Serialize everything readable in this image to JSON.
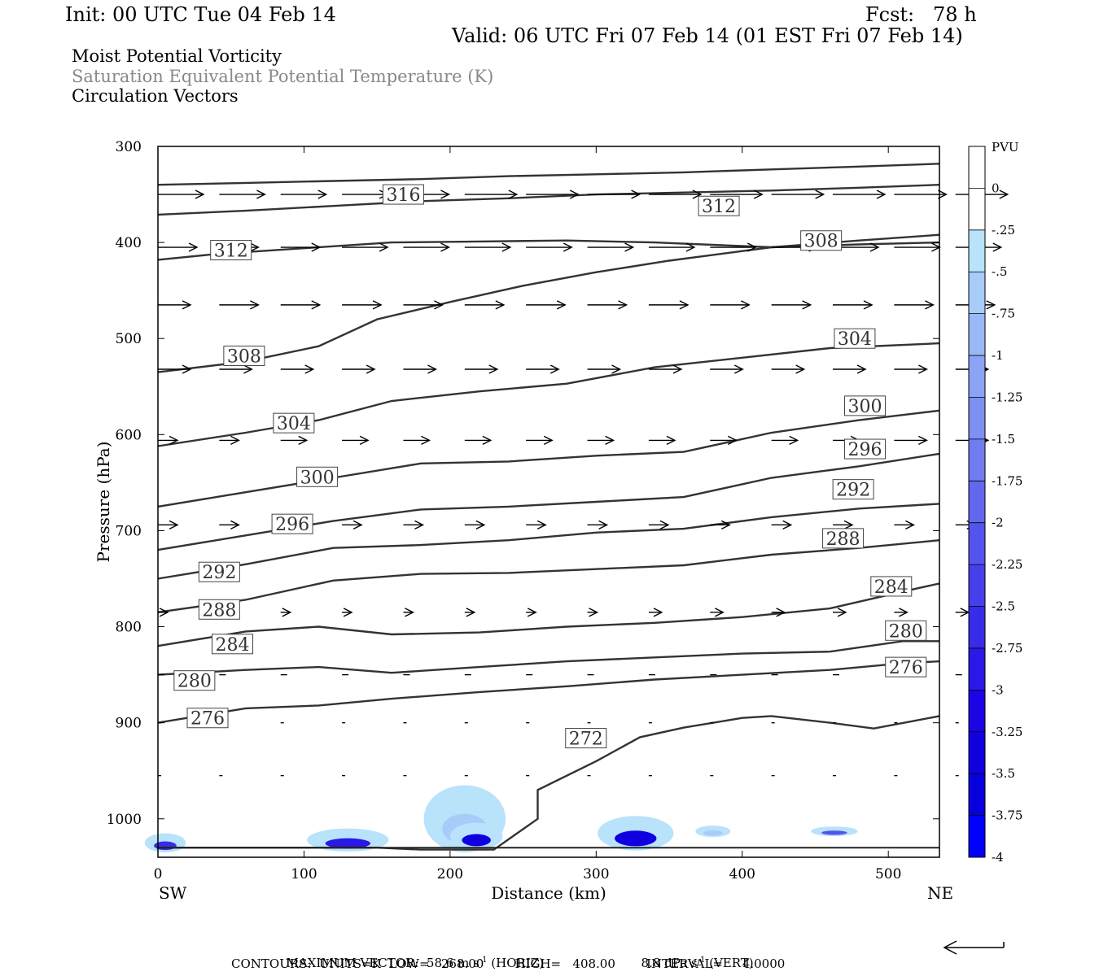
{
  "header": {
    "init": "Init: 00 UTC Tue 04 Feb 14",
    "fcst": "Fcst:   78 h",
    "valid": "Valid: 06 UTC Fri 07 Feb 14 (01 EST Fri 07 Feb 14)"
  },
  "fields": {
    "field1": "Moist Potential Vorticity",
    "field2": "Saturation Equivalent Potential Temperature (K)",
    "field3": "Circulation Vectors"
  },
  "footer": {
    "max_vector": "MAXIMUM VECTOR:  58.6 m s",
    "max_vector_exp1": "-1",
    "horiz": " (HORIZ)",
    "vert_value": "8.8 dPa s",
    "max_vector_exp2": "-1",
    "vert": " (VERT)",
    "contours": "CONTOURS:  UNITS=K  LOW=   268.00        HIGH=   408.00        INTERVAL=     4.0000"
  },
  "colors": {
    "pv_scale": [
      "#ffffff",
      "#ffffff",
      "#b9e2fb",
      "#a8ccf8",
      "#9ab8f6",
      "#8ca4f4",
      "#7e90f2",
      "#707cf0",
      "#6268ee",
      "#5454ec",
      "#4640ea",
      "#382ce8",
      "#2a18e6",
      "#1c04e4",
      "#1000e0",
      "#0800dc",
      "#0000ff"
    ],
    "contour": "#333333",
    "vector": "#000000"
  },
  "chart_data": {
    "type": "cross-section",
    "xlabel": "Distance (km)",
    "ylabel": "Pressure (hPa)",
    "xlim": [
      0,
      535
    ],
    "ylim": [
      1040,
      300
    ],
    "x_ticks": [
      0,
      100,
      200,
      300,
      400,
      500
    ],
    "y_ticks": [
      300,
      400,
      500,
      600,
      700,
      800,
      900,
      1000
    ],
    "x_end_labels": {
      "left": "SW",
      "right": "NE"
    },
    "colorbar": {
      "units": "PVU",
      "labels": [
        "0",
        "-.25",
        "-.5",
        "-.75",
        "-1",
        "-1.25",
        "-1.5",
        "-1.75",
        "-2",
        "-2.25",
        "-2.5",
        "-2.75",
        "-3",
        "-3.25",
        "-3.5",
        "-3.75",
        "-4"
      ]
    },
    "theta_es_contours": [
      {
        "value": 316,
        "points": [
          [
            0,
            340
          ],
          [
            60,
            338
          ],
          [
            120,
            336
          ],
          [
            180,
            334
          ],
          [
            240,
            331
          ],
          [
            300,
            329
          ],
          [
            360,
            327
          ],
          [
            420,
            324
          ],
          [
            480,
            321
          ],
          [
            535,
            318
          ]
        ],
        "label_at": [
          168,
          350
        ]
      },
      {
        "value": 312,
        "points": [
          [
            0,
            371
          ],
          [
            60,
            367
          ],
          [
            120,
            362
          ],
          [
            180,
            357
          ],
          [
            240,
            354
          ],
          [
            300,
            350
          ],
          [
            360,
            348
          ],
          [
            420,
            346
          ],
          [
            480,
            343
          ],
          [
            535,
            340
          ]
        ],
        "label_at": [
          384,
          362
        ]
      },
      {
        "value": 312,
        "points": [
          [
            0,
            418
          ],
          [
            40,
            412
          ],
          [
            100,
            406
          ],
          [
            160,
            400
          ],
          [
            220,
            399
          ],
          [
            280,
            398
          ],
          [
            340,
            400
          ],
          [
            420,
            405
          ],
          [
            480,
            402
          ],
          [
            535,
            400
          ]
        ],
        "label_at": [
          50,
          408
        ]
      },
      {
        "value": 308,
        "points": [
          [
            0,
            535
          ],
          [
            60,
            524
          ],
          [
            110,
            508
          ],
          [
            150,
            480
          ],
          [
            200,
            462
          ],
          [
            250,
            445
          ],
          [
            300,
            431
          ],
          [
            350,
            419
          ],
          [
            420,
            405
          ],
          [
            480,
            398
          ],
          [
            535,
            392
          ]
        ],
        "label_at": [
          454,
          398
        ]
      },
      {
        "value": 308,
        "points": [],
        "label_at": [
          59,
          518
        ]
      },
      {
        "value": 304,
        "points": [
          [
            0,
            612
          ],
          [
            60,
            598
          ],
          [
            110,
            585
          ],
          [
            160,
            565
          ],
          [
            220,
            555
          ],
          [
            280,
            547
          ],
          [
            340,
            530
          ],
          [
            400,
            520
          ],
          [
            460,
            510
          ],
          [
            535,
            505
          ]
        ],
        "label_at": [
          477,
          500
        ]
      },
      {
        "value": 304,
        "points": [],
        "label_at": [
          93,
          588
        ]
      },
      {
        "value": 300,
        "points": [
          [
            0,
            675
          ],
          [
            60,
            660
          ],
          [
            120,
            645
          ],
          [
            180,
            630
          ],
          [
            240,
            628
          ],
          [
            300,
            622
          ],
          [
            360,
            618
          ],
          [
            420,
            598
          ],
          [
            480,
            585
          ],
          [
            535,
            575
          ]
        ],
        "label_at": [
          484,
          570
        ]
      },
      {
        "value": 300,
        "points": [],
        "label_at": [
          109,
          644
        ]
      },
      {
        "value": 296,
        "points": [
          [
            0,
            720
          ],
          [
            60,
            705
          ],
          [
            120,
            690
          ],
          [
            180,
            678
          ],
          [
            240,
            675
          ],
          [
            300,
            670
          ],
          [
            360,
            665
          ],
          [
            420,
            645
          ],
          [
            480,
            633
          ],
          [
            535,
            620
          ]
        ],
        "label_at": [
          484,
          615
        ]
      },
      {
        "value": 292,
        "points": [
          [
            0,
            750
          ],
          [
            60,
            735
          ],
          [
            120,
            718
          ],
          [
            180,
            715
          ],
          [
            240,
            710
          ],
          [
            300,
            702
          ],
          [
            360,
            698
          ],
          [
            420,
            686
          ],
          [
            480,
            677
          ],
          [
            535,
            672
          ]
        ],
        "label_at": [
          476,
          657
        ]
      },
      {
        "value": 296,
        "points": [],
        "label_at": [
          92,
          693
        ]
      },
      {
        "value": 288,
        "points": [
          [
            0,
            785
          ],
          [
            60,
            772
          ],
          [
            120,
            752
          ],
          [
            180,
            745
          ],
          [
            240,
            744
          ],
          [
            300,
            740
          ],
          [
            360,
            736
          ],
          [
            420,
            725
          ],
          [
            480,
            718
          ],
          [
            535,
            710
          ]
        ],
        "label_at": [
          469,
          708
        ]
      },
      {
        "value": 292,
        "points": [],
        "label_at": [
          42,
          743
        ]
      },
      {
        "value": 284,
        "points": [
          [
            0,
            820
          ],
          [
            60,
            805
          ],
          [
            110,
            800
          ],
          [
            160,
            808
          ],
          [
            220,
            806
          ],
          [
            280,
            800
          ],
          [
            340,
            796
          ],
          [
            400,
            790
          ],
          [
            460,
            781
          ],
          [
            520,
            760
          ],
          [
            535,
            755
          ]
        ],
        "label_at": [
          502,
          758
        ]
      },
      {
        "value": 288,
        "points": [],
        "label_at": [
          42,
          782
        ]
      },
      {
        "value": 280,
        "points": [
          [
            0,
            850
          ],
          [
            60,
            845
          ],
          [
            110,
            842
          ],
          [
            160,
            848
          ],
          [
            220,
            842
          ],
          [
            280,
            836
          ],
          [
            340,
            832
          ],
          [
            400,
            828
          ],
          [
            460,
            826
          ],
          [
            510,
            815
          ],
          [
            535,
            815
          ]
        ],
        "label_at": [
          512,
          804
        ]
      },
      {
        "value": 284,
        "points": [],
        "label_at": [
          51,
          818
        ]
      },
      {
        "value": 276,
        "points": [
          [
            0,
            900
          ],
          [
            60,
            885
          ],
          [
            110,
            882
          ],
          [
            160,
            875
          ],
          [
            220,
            868
          ],
          [
            280,
            862
          ],
          [
            340,
            855
          ],
          [
            400,
            850
          ],
          [
            460,
            845
          ],
          [
            510,
            838
          ],
          [
            535,
            836
          ]
        ],
        "label_at": [
          512,
          842
        ]
      },
      {
        "value": 280,
        "points": [],
        "label_at": [
          25,
          856
        ]
      },
      {
        "value": 272,
        "points": [
          [
            0,
            1030
          ],
          [
            60,
            1030
          ],
          [
            150,
            1030
          ],
          [
            180,
            1032
          ],
          [
            230,
            1032
          ],
          [
            260,
            1000
          ],
          [
            260,
            970
          ],
          [
            300,
            940
          ],
          [
            330,
            915
          ],
          [
            360,
            905
          ],
          [
            400,
            895
          ],
          [
            420,
            893
          ],
          [
            460,
            900
          ],
          [
            490,
            906
          ],
          [
            535,
            893
          ]
        ],
        "label_at": [
          293,
          916
        ]
      },
      {
        "value": 276,
        "points": [],
        "label_at": [
          34,
          895
        ]
      }
    ],
    "pv_blobs": [
      {
        "x": 5,
        "p": 1025,
        "rx": 14,
        "rp": 10,
        "pv": -2.5
      },
      {
        "x": 130,
        "p": 1022,
        "rx": 28,
        "rp": 12,
        "pv": -2.75
      },
      {
        "x": 210,
        "p": 1000,
        "rx": 28,
        "rp": 35,
        "pv": -0.5
      },
      {
        "x": 218,
        "p": 1018,
        "rx": 18,
        "rp": 14,
        "pv": -3.25
      },
      {
        "x": 327,
        "p": 1015,
        "rx": 26,
        "rp": 18,
        "pv": -3.25
      },
      {
        "x": 380,
        "p": 1013,
        "rx": 12,
        "rp": 6,
        "pv": -0.5
      },
      {
        "x": 463,
        "p": 1013,
        "rx": 16,
        "rp": 5,
        "pv": -2
      }
    ],
    "vectors": [
      {
        "p": 350,
        "u": [
          0.7,
          0.7,
          0.7,
          0.7,
          0.7,
          0.8,
          0.8,
          0.8,
          0.8,
          0.8,
          0.8,
          0.8,
          0.8,
          0.8
        ]
      },
      {
        "p": 405,
        "u": [
          0.6,
          0.6,
          0.6,
          0.7,
          0.7,
          0.7,
          0.7,
          0.7,
          0.7,
          0.7,
          0.7,
          0.7,
          0.7,
          0.7
        ]
      },
      {
        "p": 465,
        "u": [
          0.5,
          0.6,
          0.6,
          0.6,
          0.6,
          0.6,
          0.6,
          0.6,
          0.6,
          0.6,
          0.6,
          0.6,
          0.6,
          0.6
        ]
      },
      {
        "p": 532,
        "u": [
          0.5,
          0.5,
          0.5,
          0.5,
          0.5,
          0.5,
          0.5,
          0.5,
          0.5,
          0.5,
          0.5,
          0.5,
          0.5,
          0.5
        ]
      },
      {
        "p": 606,
        "u": [
          0.3,
          0.3,
          0.4,
          0.4,
          0.4,
          0.4,
          0.4,
          0.4,
          0.4,
          0.4,
          0.4,
          0.4,
          0.5,
          0.5
        ]
      },
      {
        "p": 694,
        "u": [
          0.3,
          0.3,
          0.3,
          0.3,
          0.3,
          0.3,
          0.3,
          0.3,
          0.3,
          0.3,
          0.3,
          0.3,
          0.3,
          0.3
        ]
      },
      {
        "p": 785,
        "u": [
          0.15,
          0.15,
          0.15,
          0.15,
          0.15,
          0.15,
          0.15,
          0.15,
          0.2,
          0.2,
          0.2,
          0.2,
          0.2,
          0.2
        ]
      },
      {
        "p": 850,
        "u": [
          0.1,
          0.1,
          0.1,
          0.1,
          0.1,
          0.1,
          0.1,
          0.1,
          0.1,
          0.1,
          0.1,
          0.1,
          0.1,
          0.1
        ]
      },
      {
        "p": 900,
        "u": [
          0.05,
          0.05,
          0.05,
          0.05,
          0.05,
          0.05,
          0.05,
          0.05,
          0.05,
          0.05,
          0.05,
          0.05,
          0.05,
          0.05
        ]
      },
      {
        "p": 955,
        "u": [
          0.05,
          0.05,
          0.05,
          0.05,
          0.05,
          0.05,
          0.05,
          0.05,
          0.05,
          0.05,
          0.05,
          0.05,
          0.05,
          0.05
        ]
      }
    ]
  }
}
